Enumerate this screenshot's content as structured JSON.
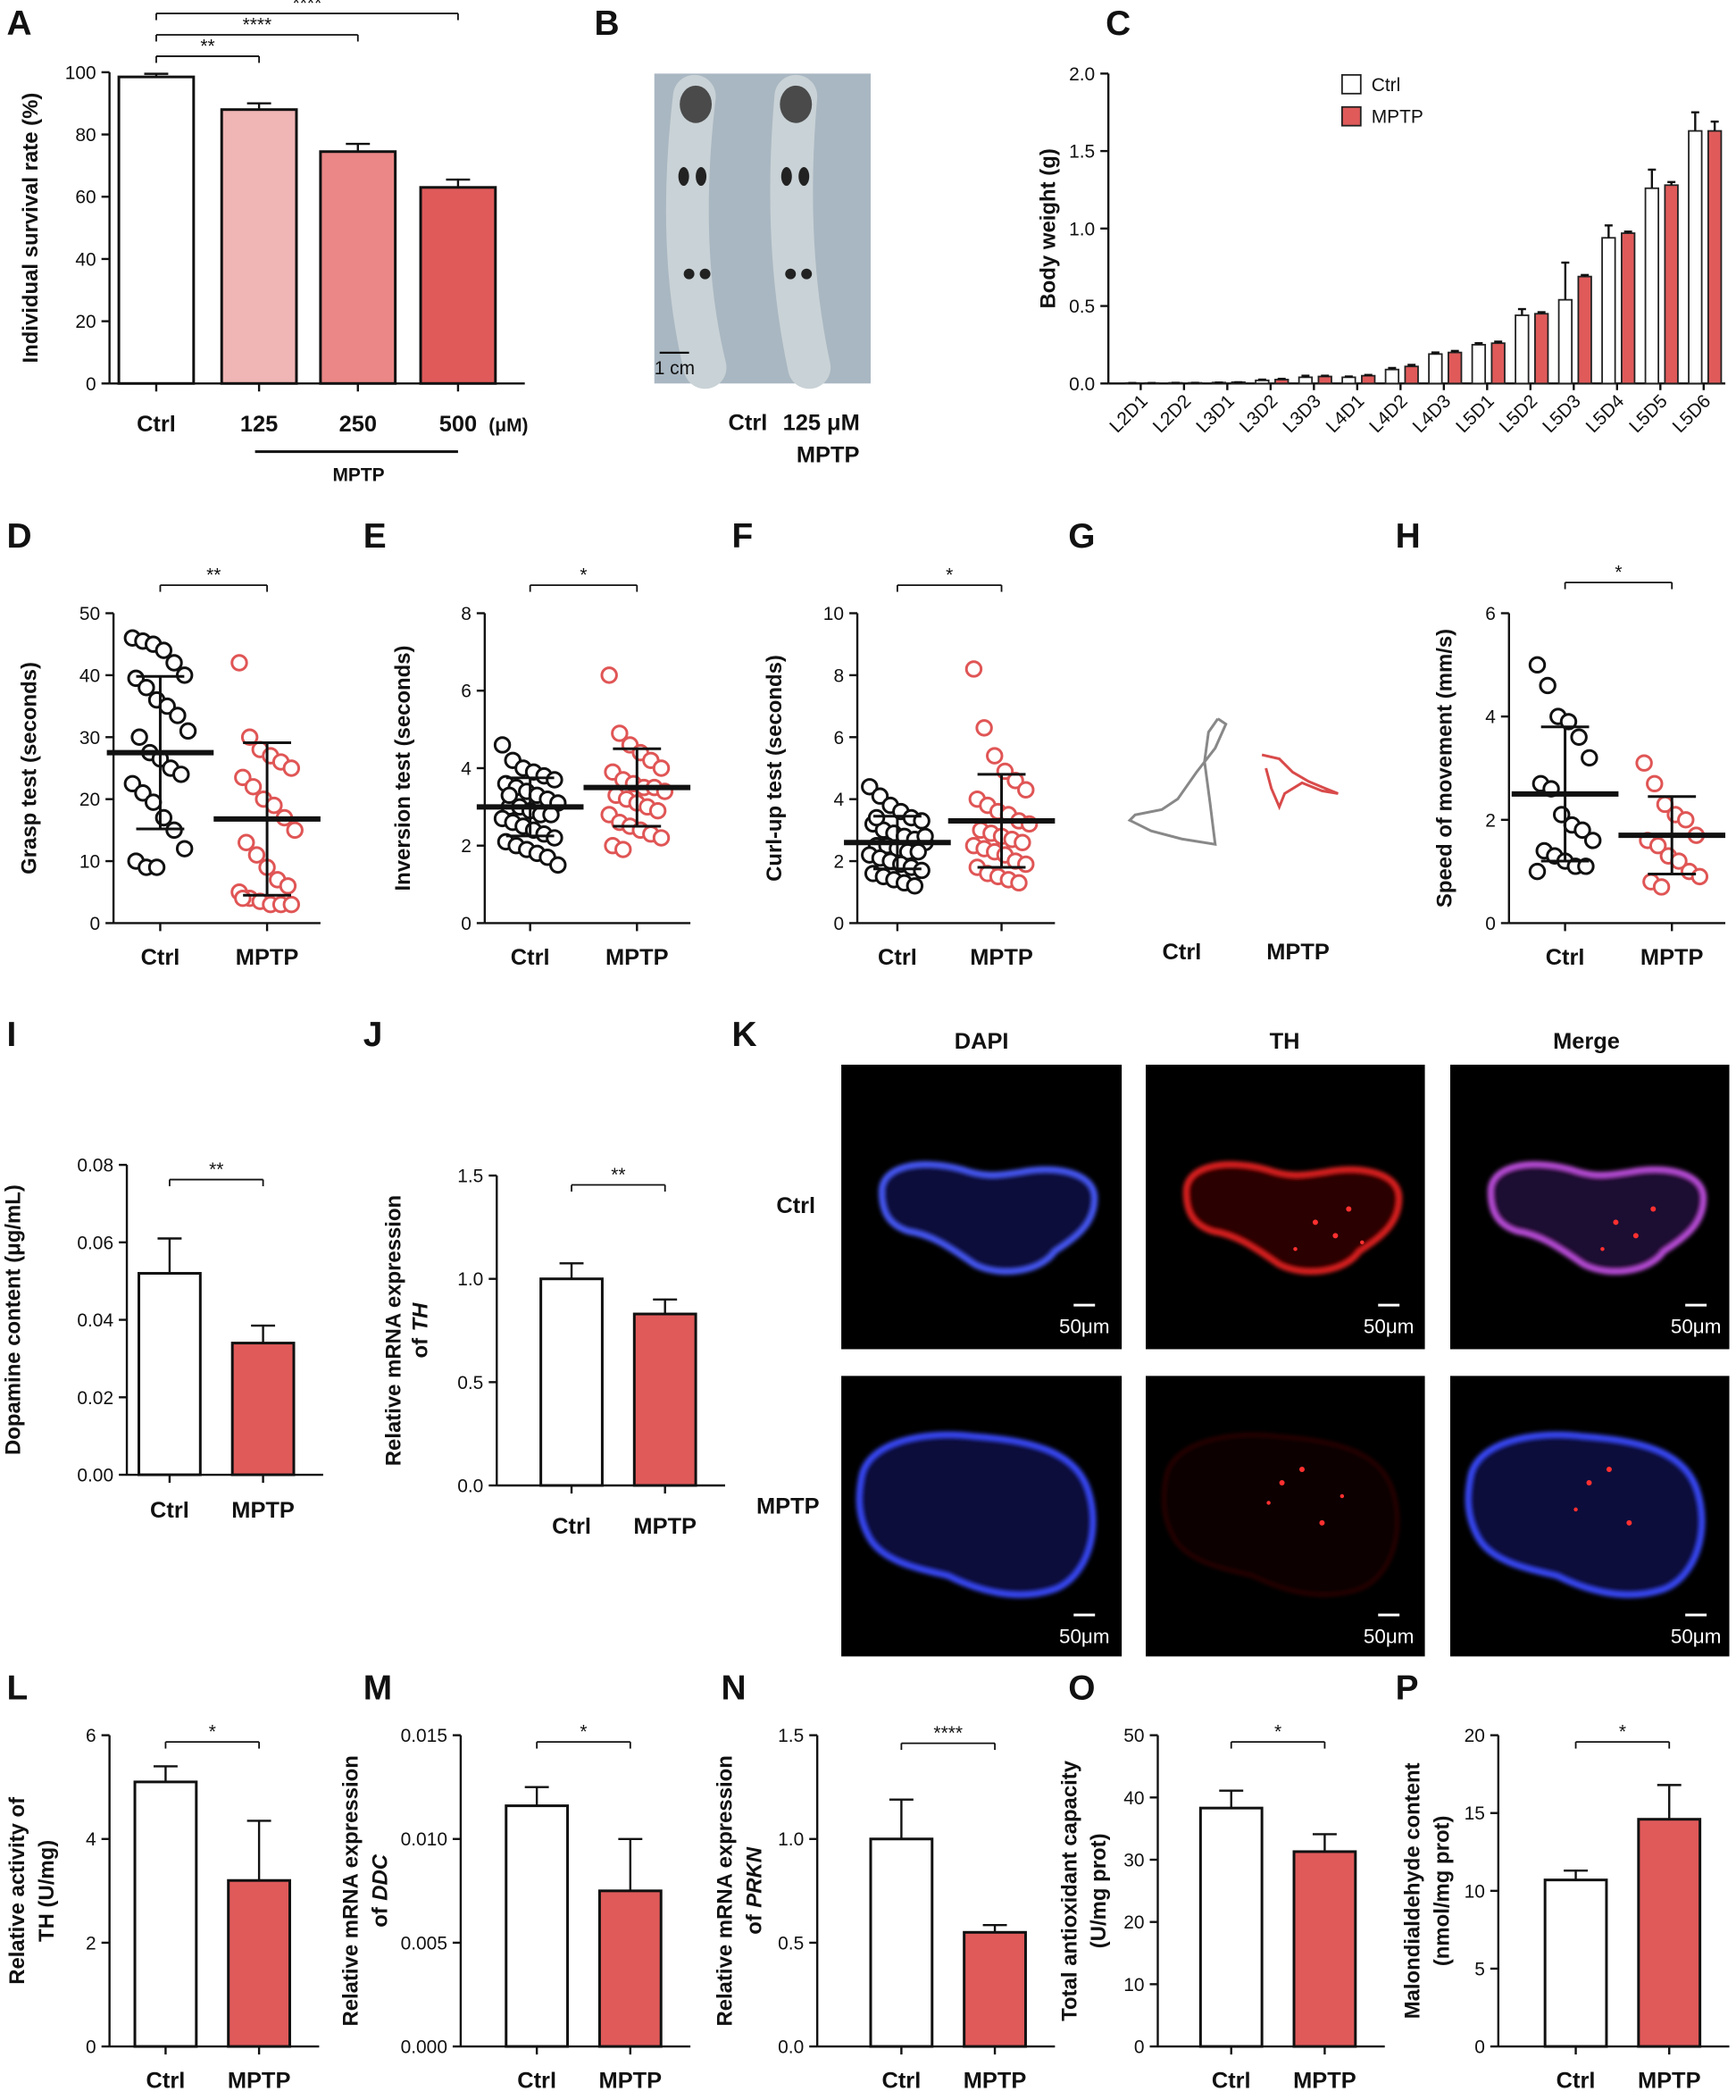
{
  "chart_data": [
    {
      "type": "bar",
      "label": "A",
      "ylabel": "Individual survival rate (%)",
      "categories": [
        "Ctrl",
        "125",
        "250",
        "500"
      ],
      "unit": "(μM)",
      "group_label": "MPTP",
      "values": [
        98.5,
        88,
        74.5,
        63
      ],
      "errors": [
        1,
        2,
        2.5,
        2.5
      ],
      "colors": [
        "#ffffff",
        "#f0b5b5",
        "#eb8787",
        "#e05a5a"
      ],
      "ylim": [
        0,
        100
      ],
      "yticks": [
        0,
        20,
        40,
        60,
        80,
        100
      ],
      "significance": [
        {
          "groups": [
            "Ctrl",
            "125"
          ],
          "label": "**"
        },
        {
          "groups": [
            "Ctrl",
            "250"
          ],
          "label": "****"
        },
        {
          "groups": [
            "Ctrl",
            "500"
          ],
          "label": "****"
        }
      ]
    },
    {
      "type": "image",
      "label": "B",
      "categories": [
        "Ctrl",
        "125 μM"
      ],
      "category_note": "MPTP",
      "scale_bar": "1 cm"
    },
    {
      "type": "bar",
      "label": "C",
      "ylabel": "Body weight (g)",
      "categories": [
        "L2D1",
        "L2D2",
        "L3D1",
        "L3D2",
        "L3D3",
        "L4D1",
        "L4D2",
        "L4D3",
        "L5D1",
        "L5D2",
        "L5D3",
        "L5D4",
        "L5D5",
        "L5D6"
      ],
      "series": [
        {
          "name": "Ctrl",
          "color": "#ffffff",
          "values": [
            0.003,
            0.004,
            0.006,
            0.02,
            0.04,
            0.04,
            0.09,
            0.19,
            0.25,
            0.44,
            0.54,
            0.94,
            1.26,
            1.63
          ],
          "errors": [
            0,
            0,
            0,
            0.005,
            0.01,
            0.005,
            0.01,
            0.01,
            0.01,
            0.04,
            0.24,
            0.08,
            0.12,
            0.12
          ]
        },
        {
          "name": "MPTP",
          "color": "#e05a5a",
          "values": [
            0.003,
            0.004,
            0.008,
            0.025,
            0.045,
            0.05,
            0.11,
            0.2,
            0.26,
            0.45,
            0.69,
            0.97,
            1.28,
            1.63
          ],
          "errors": [
            0,
            0,
            0,
            0.005,
            0.005,
            0.005,
            0.01,
            0.01,
            0.01,
            0.01,
            0.01,
            0.01,
            0.02,
            0.06
          ]
        }
      ],
      "ylim": [
        0,
        2
      ],
      "yticks": [
        {
          "value": 0,
          "label": "0.0"
        },
        {
          "value": 0.5,
          "label": "0.5"
        },
        {
          "value": 1,
          "label": "1.0"
        },
        {
          "value": 1.5,
          "label": "1.5"
        },
        {
          "value": 2,
          "label": "2.0"
        }
      ],
      "legend": "top-center"
    },
    {
      "type": "dot",
      "label": "D",
      "ylabel": "Grasp test (seconds)",
      "categories": [
        "Ctrl",
        "MPTP"
      ],
      "colors": [
        "#111111",
        "#e05555"
      ],
      "values": [
        [
          46,
          45.5,
          45,
          44,
          42,
          40,
          39.5,
          38,
          36,
          35,
          33.5,
          31,
          30,
          27.5,
          26.5,
          25,
          24,
          22.5,
          21,
          19.5,
          17,
          15,
          12,
          10,
          9,
          9
        ],
        [
          42,
          30,
          28,
          27,
          26,
          25,
          23.5,
          22,
          20,
          19,
          17,
          15,
          13,
          11,
          9,
          7,
          6,
          5,
          4,
          3.5,
          3,
          3,
          3,
          4
        ]
      ],
      "means": [
        27.5,
        16.8
      ],
      "sds": [
        12.3,
        12.3
      ],
      "ylim": [
        0,
        50
      ],
      "yticks": [
        0,
        10,
        20,
        30,
        40,
        50
      ],
      "significance": [
        {
          "groups": [
            "Ctrl",
            "MPTP"
          ],
          "label": "**"
        }
      ]
    },
    {
      "type": "dot",
      "label": "E",
      "ylabel": "Inversion test (seconds)",
      "categories": [
        "Ctrl",
        "MPTP"
      ],
      "colors": [
        "#111111",
        "#e05555"
      ],
      "values": [
        [
          4.6,
          4.2,
          4.0,
          3.9,
          3.8,
          3.7,
          3.6,
          3.5,
          3.4,
          3.3,
          3.2,
          3.1,
          3.0,
          3.0,
          2.9,
          2.8,
          2.8,
          2.7,
          2.6,
          2.5,
          2.4,
          2.3,
          2.2,
          2.1,
          2.0,
          1.9,
          1.8,
          1.7,
          1.5,
          3.3
        ],
        [
          6.4,
          4.9,
          4.6,
          4.4,
          4.2,
          4.0,
          3.9,
          3.7,
          3.6,
          3.5,
          3.5,
          3.4,
          3.3,
          3.2,
          3.1,
          3.0,
          2.9,
          2.8,
          2.6,
          2.5,
          2.4,
          2.3,
          2.2,
          2.0,
          1.9
        ]
      ],
      "means": [
        3.0,
        3.5
      ],
      "sds": [
        0.75,
        1.0
      ],
      "ylim": [
        0,
        8
      ],
      "yticks": [
        0,
        2,
        4,
        6,
        8
      ],
      "significance": [
        {
          "groups": [
            "Ctrl",
            "MPTP"
          ],
          "label": "*"
        }
      ]
    },
    {
      "type": "dot",
      "label": "F",
      "ylabel": "Curl-up test (seconds)",
      "categories": [
        "Ctrl",
        "MPTP"
      ],
      "colors": [
        "#111111",
        "#e05555"
      ],
      "values": [
        [
          4.4,
          4.1,
          3.8,
          3.6,
          3.4,
          3.3,
          3.2,
          3.0,
          2.9,
          2.8,
          2.7,
          2.6,
          2.5,
          2.5,
          2.4,
          2.3,
          2.3,
          2.2,
          2.1,
          2.0,
          1.9,
          1.8,
          1.7,
          1.6,
          1.5,
          1.4,
          1.3,
          1.2,
          2.8,
          3.4
        ],
        [
          8.2,
          6.3,
          5.4,
          4.9,
          4.6,
          4.3,
          4.0,
          3.8,
          3.6,
          3.5,
          3.3,
          3.2,
          3.0,
          2.9,
          2.8,
          2.7,
          2.6,
          2.5,
          2.4,
          2.3,
          2.2,
          2.0,
          1.9,
          1.8,
          1.6,
          1.5,
          1.4,
          1.3
        ]
      ],
      "means": [
        2.6,
        3.3
      ],
      "sds": [
        0.85,
        1.5
      ],
      "ylim": [
        0,
        10
      ],
      "yticks": [
        0,
        2,
        4,
        6,
        8,
        10
      ],
      "significance": [
        {
          "groups": [
            "Ctrl",
            "MPTP"
          ],
          "label": "*"
        }
      ]
    },
    {
      "type": "image",
      "label": "G",
      "categories": [
        "Ctrl",
        "MPTP"
      ]
    },
    {
      "type": "dot",
      "label": "H",
      "ylabel": "Speed of movement (mm/s)",
      "categories": [
        "Ctrl",
        "MPTP"
      ],
      "colors": [
        "#111111",
        "#e05555"
      ],
      "values": [
        [
          5.0,
          4.6,
          4.0,
          3.9,
          3.6,
          3.2,
          2.7,
          2.6,
          2.1,
          1.9,
          1.8,
          1.6,
          1.4,
          1.3,
          1.2,
          1.1,
          1.1,
          1.0
        ],
        [
          3.1,
          2.7,
          2.3,
          2.1,
          2.0,
          1.7,
          1.6,
          1.5,
          1.3,
          1.2,
          1.0,
          0.9,
          0.8,
          0.7
        ]
      ],
      "means": [
        2.5,
        1.7
      ],
      "sds": [
        1.3,
        0.75
      ],
      "ylim": [
        0,
        6
      ],
      "yticks": [
        0,
        2,
        4,
        6
      ],
      "significance": [
        {
          "groups": [
            "Ctrl",
            "MPTP"
          ],
          "label": "*"
        }
      ]
    },
    {
      "type": "bar",
      "label": "I",
      "ylabel": "Dopamine content (μg/mL)",
      "categories": [
        "Ctrl",
        "MPTP"
      ],
      "values": [
        0.052,
        0.034
      ],
      "errors": [
        0.009,
        0.0045
      ],
      "colors": [
        "#ffffff",
        "#e05a5a"
      ],
      "ylim": [
        0,
        0.08
      ],
      "yticks": [
        {
          "value": 0,
          "label": "0.00"
        },
        {
          "value": 0.02,
          "label": "0.02"
        },
        {
          "value": 0.04,
          "label": "0.04"
        },
        {
          "value": 0.06,
          "label": "0.06"
        },
        {
          "value": 0.08,
          "label": "0.08"
        }
      ],
      "significance": [
        {
          "groups": [
            "Ctrl",
            "MPTP"
          ],
          "label": "**"
        }
      ]
    },
    {
      "type": "bar",
      "label": "J",
      "ylabel": [
        "Relative mRNA expression",
        "of"
      ],
      "ylabel_gene": "TH",
      "categories": [
        "Ctrl",
        "MPTP"
      ],
      "values": [
        1.0,
        0.83
      ],
      "errors": [
        0.075,
        0.07
      ],
      "colors": [
        "#ffffff",
        "#e05a5a"
      ],
      "ylim": [
        0,
        1.5
      ],
      "yticks": [
        {
          "value": 0,
          "label": "0.0"
        },
        {
          "value": 0.5,
          "label": "0.5"
        },
        {
          "value": 1,
          "label": "1.0"
        },
        {
          "value": 1.5,
          "label": "1.5"
        }
      ],
      "significance": [
        {
          "groups": [
            "Ctrl",
            "MPTP"
          ],
          "label": "**"
        }
      ]
    },
    {
      "type": "image",
      "label": "K",
      "columns": [
        "DAPI",
        "TH",
        "Merge"
      ],
      "rows": [
        "Ctrl",
        "MPTP"
      ],
      "scale_bar": "50μm"
    },
    {
      "type": "bar",
      "label": "L",
      "ylabel": [
        "Relative activity of",
        "TH (U/mg)"
      ],
      "categories": [
        "Ctrl",
        "MPTP"
      ],
      "values": [
        5.1,
        3.2
      ],
      "errors": [
        0.3,
        1.15
      ],
      "colors": [
        "#ffffff",
        "#e05a5a"
      ],
      "ylim": [
        0,
        6
      ],
      "yticks": [
        0,
        2,
        4,
        6
      ],
      "significance": [
        {
          "groups": [
            "Ctrl",
            "MPTP"
          ],
          "label": "*"
        }
      ]
    },
    {
      "type": "bar",
      "label": "M",
      "ylabel": [
        "Relative mRNA expression",
        "of"
      ],
      "ylabel_gene": "DDC",
      "categories": [
        "Ctrl",
        "MPTP"
      ],
      "values": [
        0.0116,
        0.0075
      ],
      "errors": [
        0.0009,
        0.0025
      ],
      "colors": [
        "#ffffff",
        "#e05a5a"
      ],
      "ylim": [
        0,
        0.015
      ],
      "yticks": [
        {
          "value": 0,
          "label": "0.000"
        },
        {
          "value": 0.005,
          "label": "0.005"
        },
        {
          "value": 0.01,
          "label": "0.010"
        },
        {
          "value": 0.015,
          "label": "0.015"
        }
      ],
      "significance": [
        {
          "groups": [
            "Ctrl",
            "MPTP"
          ],
          "label": "*"
        }
      ]
    },
    {
      "type": "bar",
      "label": "N",
      "ylabel": [
        "Relative mRNA expression",
        "of"
      ],
      "ylabel_gene": "PRKN",
      "categories": [
        "Ctrl",
        "MPTP"
      ],
      "values": [
        1.0,
        0.55
      ],
      "errors": [
        0.19,
        0.035
      ],
      "colors": [
        "#ffffff",
        "#e05a5a"
      ],
      "ylim": [
        0,
        1.5
      ],
      "yticks": [
        {
          "value": 0,
          "label": "0.0"
        },
        {
          "value": 0.5,
          "label": "0.5"
        },
        {
          "value": 1,
          "label": "1.0"
        },
        {
          "value": 1.5,
          "label": "1.5"
        }
      ],
      "significance": [
        {
          "groups": [
            "Ctrl",
            "MPTP"
          ],
          "label": "****"
        }
      ]
    },
    {
      "type": "bar",
      "label": "O",
      "ylabel": [
        "Total antioxidant capacity",
        "(U/mg prot)"
      ],
      "categories": [
        "Ctrl",
        "MPTP"
      ],
      "values": [
        38.3,
        31.3
      ],
      "errors": [
        2.8,
        2.8
      ],
      "colors": [
        "#ffffff",
        "#e05a5a"
      ],
      "ylim": [
        0,
        50
      ],
      "yticks": [
        0,
        10,
        20,
        30,
        40,
        50
      ],
      "significance": [
        {
          "groups": [
            "Ctrl",
            "MPTP"
          ],
          "label": "*"
        }
      ]
    },
    {
      "type": "bar",
      "label": "P",
      "ylabel": [
        "Malondialdehyde content",
        "(nmol/mg prot)"
      ],
      "categories": [
        "Ctrl",
        "MPTP"
      ],
      "values": [
        10.7,
        14.6
      ],
      "errors": [
        0.6,
        2.2
      ],
      "colors": [
        "#ffffff",
        "#e05a5a"
      ],
      "ylim": [
        0,
        20
      ],
      "yticks": [
        0,
        5,
        10,
        15,
        20
      ],
      "significance": [
        {
          "groups": [
            "Ctrl",
            "MPTP"
          ],
          "label": "*"
        }
      ]
    }
  ]
}
